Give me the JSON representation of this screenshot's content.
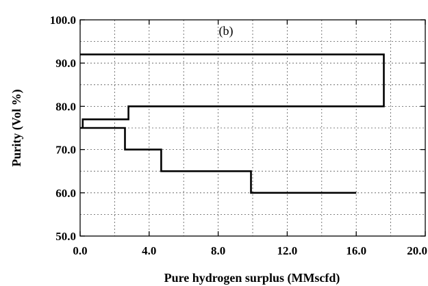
{
  "chart_data": {
    "type": "line",
    "title": "",
    "xlabel": "Pure hydrogen surplus (MMscfd)",
    "ylabel": "Purity (Vol %)",
    "xlim": [
      0,
      20
    ],
    "ylim": [
      50,
      100
    ],
    "x_ticks": [
      0,
      4,
      8,
      12,
      16,
      20
    ],
    "x_tick_labels": [
      "0.0",
      "4.0",
      "8.0",
      "12.0",
      "16.0",
      "20.0"
    ],
    "y_ticks": [
      50,
      60,
      70,
      80,
      90,
      100
    ],
    "y_tick_labels": [
      "50.0",
      "60.0",
      "70.0",
      "80.0",
      "90.0",
      "100.0"
    ],
    "grid": true,
    "grid_x_step": 2,
    "grid_y_step": 5,
    "annotation": "(b)",
    "series": [
      {
        "x": [
          0.0,
          17.6,
          17.6,
          2.8,
          2.8,
          0.15,
          0.15,
          0.0,
          0.0,
          2.6,
          2.6,
          4.7,
          4.7,
          9.9,
          9.9,
          16.0
        ],
        "y": [
          92.0,
          92.0,
          80.0,
          80.0,
          77.0,
          77.0,
          75.0,
          75.0,
          75.0,
          75.0,
          70.0,
          70.0,
          65.0,
          65.0,
          60.0,
          60.0
        ]
      }
    ],
    "line_color": "#000000"
  }
}
